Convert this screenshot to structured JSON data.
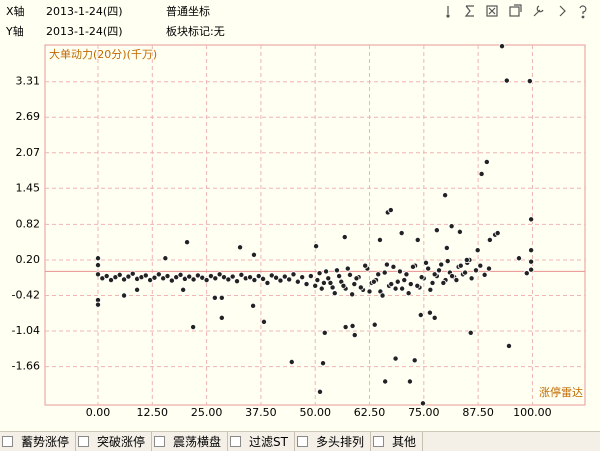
{
  "header": {
    "x_line": [
      "X轴",
      "2013-1-24(四)",
      "普通坐标"
    ],
    "y_line": [
      "Y轴",
      "2013-1-24(四)",
      "板块标记:无"
    ]
  },
  "chart_data": {
    "type": "scatter",
    "y_label": "大单动力(20分)(千万)",
    "x_label": "涨停雷达",
    "color": "#222222",
    "grid": true,
    "xlim": [
      -12.2,
      112.1
    ],
    "ylim": [
      -2.33,
      3.95
    ],
    "xticks": [
      {
        "value": 0,
        "label": "0.00"
      },
      {
        "value": 12.5,
        "label": "12.50"
      },
      {
        "value": 25,
        "label": "25.00"
      },
      {
        "value": 37.5,
        "label": "37.50"
      },
      {
        "value": 50,
        "label": "50.00"
      },
      {
        "value": 62.5,
        "label": "62.50"
      },
      {
        "value": 75,
        "label": "75.00"
      },
      {
        "value": 87.5,
        "label": "87.50"
      },
      {
        "value": 100,
        "label": "100.00"
      }
    ],
    "yticks": [
      3.31,
      2.69,
      2.07,
      1.45,
      0.82,
      {
        "value": 0.2,
        "label": "0.20"
      },
      -0.42,
      -1.04,
      -1.66
    ],
    "x": [
      0,
      1,
      2,
      3,
      4,
      5,
      6,
      7,
      8,
      9,
      10,
      11,
      12,
      13,
      14,
      15,
      16,
      17,
      18,
      19,
      20,
      21,
      22,
      23,
      24,
      25,
      26,
      27,
      28,
      29,
      30,
      31,
      32,
      33,
      34,
      35,
      36,
      37,
      38,
      39,
      40,
      41,
      42,
      43,
      44,
      45,
      46,
      47,
      48,
      49,
      50,
      51,
      52,
      53,
      54,
      55,
      56,
      57,
      58,
      59,
      60,
      61,
      62,
      63,
      64,
      65,
      66,
      67,
      68,
      69,
      70,
      71,
      72,
      73,
      74,
      75,
      76,
      77,
      78,
      79,
      80,
      81,
      82,
      83,
      84,
      85,
      86,
      87,
      88,
      89,
      90,
      50.5,
      51.5,
      52.5,
      53.5,
      54.5,
      55.5,
      56.5,
      57.5,
      58.5,
      59.5,
      60.5,
      61.5,
      62.5,
      63.5,
      64.5,
      65.5,
      66.5,
      67.5,
      68.5,
      69.5,
      70.5,
      71.5,
      72.5,
      73.5,
      74.5,
      75.5,
      76.5,
      77.5,
      78.5,
      79.5,
      80.5,
      81.5,
      82.5,
      83.5,
      84.5,
      85.5,
      0,
      0,
      0,
      0,
      6,
      9,
      15.5,
      20.5,
      21.9,
      19.6,
      26.9,
      28.5,
      28.5,
      32.7,
      35.9,
      35.7,
      38.2,
      44.6,
      50.2,
      51.1,
      51.8,
      52.2,
      56.8,
      57,
      58.6,
      59.1,
      63.7,
      64.9,
      66.1,
      66.7,
      67.4,
      68.5,
      69.9,
      71.8,
      72.9,
      73.6,
      74.3,
      74.8,
      76.4,
      77.5,
      78,
      79.9,
      80.3,
      81.4,
      83.3,
      84.9,
      85.8,
      87.4,
      88.3,
      89.5,
      90.2,
      91.4,
      92,
      93,
      94.1,
      94.6,
      99.4,
      99.7,
      99.7,
      99.7,
      99.7,
      98.7,
      96.9
    ],
    "values": [
      -0.05,
      -0.12,
      -0.08,
      -0.15,
      -0.1,
      -0.06,
      -0.14,
      -0.09,
      -0.04,
      -0.13,
      -0.1,
      -0.07,
      -0.15,
      -0.11,
      -0.05,
      -0.12,
      -0.08,
      -0.16,
      -0.1,
      -0.06,
      -0.13,
      -0.09,
      -0.14,
      -0.07,
      -0.11,
      -0.15,
      -0.08,
      -0.12,
      -0.05,
      -0.1,
      -0.14,
      -0.09,
      -0.17,
      -0.06,
      -0.12,
      -0.1,
      -0.15,
      -0.08,
      -0.13,
      -0.2,
      -0.07,
      -0.11,
      -0.16,
      -0.09,
      -0.14,
      -0.05,
      -0.18,
      -0.1,
      -0.22,
      -0.08,
      -0.25,
      -0.03,
      -0.2,
      -0.12,
      -0.28,
      0.02,
      -0.18,
      -0.3,
      -0.06,
      -0.22,
      -0.1,
      -0.32,
      0.05,
      -0.2,
      -0.15,
      -0.35,
      -0.02,
      -0.25,
      0.08,
      -0.18,
      -0.3,
      -0.05,
      -0.22,
      0.1,
      -0.28,
      -0.12,
      0.05,
      -0.2,
      -0.08,
      0.12,
      -0.15,
      -0.02,
      -0.1,
      0.08,
      -0.05,
      0.15,
      -0.12,
      0.02,
      0.1,
      -0.06,
      0.05,
      -0.15,
      -0.3,
      0.0,
      -0.2,
      -0.38,
      -0.08,
      -0.25,
      0.05,
      -0.4,
      -0.12,
      -0.28,
      0.1,
      -0.35,
      -0.18,
      -0.05,
      -0.42,
      0.12,
      -0.22,
      -0.3,
      0.0,
      -0.15,
      -0.38,
      0.08,
      -0.25,
      -0.1,
      0.15,
      -0.32,
      -0.05,
      0.02,
      -0.2,
      0.18,
      -0.08,
      -0.15,
      0.1,
      -0.02,
      0.2,
      0.23,
      0.11,
      -0.5,
      -0.58,
      -0.42,
      -0.32,
      0.23,
      0.51,
      -0.97,
      -0.32,
      -0.46,
      -0.46,
      -0.81,
      0.42,
      0.29,
      -0.6,
      -0.88,
      -1.58,
      0.44,
      -2.1,
      -1.6,
      -1.07,
      0.6,
      -0.97,
      -0.95,
      -1.11,
      -0.93,
      0.55,
      -1.92,
      1.03,
      1.07,
      -1.52,
      0.67,
      -1.92,
      -1.55,
      0.55,
      -0.76,
      -2.3,
      -0.72,
      -0.81,
      0.72,
      1.33,
      0.41,
      0.79,
      0.69,
      0.2,
      -1.07,
      0.37,
      1.7,
      1.91,
      0.55,
      0.64,
      0.67,
      3.93,
      3.33,
      -1.3,
      3.32,
      0.91,
      0.37,
      0.17,
      0.03,
      -0.03,
      0.23
    ]
  },
  "tabs": [
    "蓄势涨停",
    "突破涨停",
    "震荡横盘",
    "过滤ST",
    "多头排列",
    "其他"
  ]
}
